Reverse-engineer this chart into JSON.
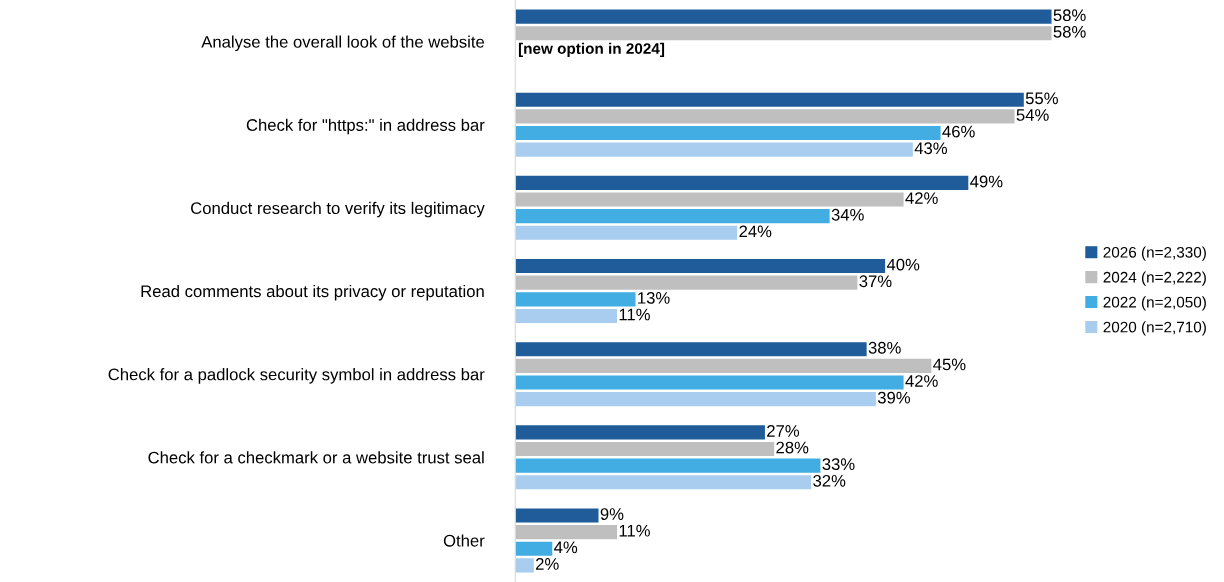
{
  "chart_data": {
    "type": "bar",
    "orientation": "horizontal",
    "categories": [
      "Analyse the overall look of the website",
      "Check for \"https:\" in address bar",
      "Conduct research to verify its legitimacy",
      "Read comments about its privacy or reputation",
      "Check for a padlock security symbol in address bar",
      "Check for a checkmark or a website trust seal",
      "Other"
    ],
    "series": [
      {
        "name": "2026 (n=2,330)",
        "color": "#1f5c99",
        "values": [
          58,
          55,
          49,
          40,
          38,
          27,
          9
        ],
        "value_labels": [
          "58%",
          "55%",
          "49%",
          "40%",
          "38%",
          "27%",
          "9%"
        ]
      },
      {
        "name": "2024 (n=2,222)",
        "color": "#bfbfbf",
        "values": [
          58,
          54,
          42,
          37,
          45,
          28,
          11
        ],
        "value_labels": [
          "58%",
          "54%",
          "42%",
          "37%",
          "45%",
          "28%",
          "11%"
        ]
      },
      {
        "name": "2022 (n=2,050)",
        "color": "#41ade2",
        "values": [
          null,
          46,
          34,
          13,
          42,
          33,
          4
        ],
        "value_labels": [
          null,
          "46%",
          "34%",
          "13%",
          "42%",
          "33%",
          "4%"
        ]
      },
      {
        "name": "2020 (n=2,710)",
        "color": "#a9cdee",
        "values": [
          null,
          43,
          24,
          11,
          39,
          32,
          2
        ],
        "value_labels": [
          null,
          "43%",
          "24%",
          "11%",
          "39%",
          "32%",
          "2%"
        ]
      }
    ],
    "annotations": [
      "[new option in 2024]"
    ],
    "legend": "right",
    "tick_labels": "y",
    "grid": false
  }
}
